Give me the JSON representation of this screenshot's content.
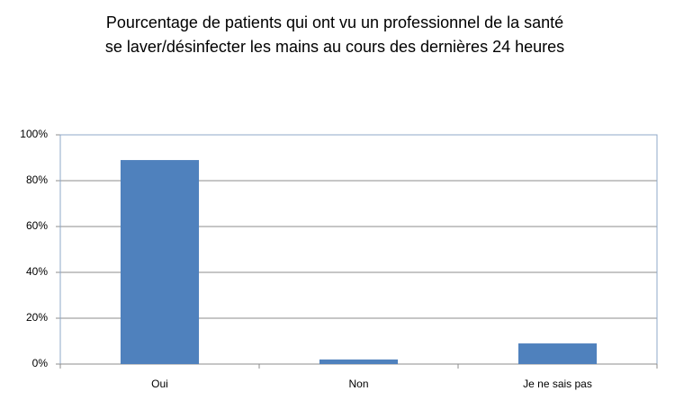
{
  "chart_data": {
    "type": "bar",
    "title": [
      "Pourcentage de patients qui ont vu un professionnel de la santé",
      "se laver/désinfecter les mains au cours des dernières 24 heures"
    ],
    "categories": [
      "Oui",
      "Non",
      "Je ne sais pas"
    ],
    "values": [
      89,
      2,
      9
    ],
    "color": "#4f81bd",
    "ylim": [
      0,
      100
    ],
    "yticks": [
      {
        "value": 0,
        "label": "0%"
      },
      {
        "value": 20,
        "label": "20%"
      },
      {
        "value": 40,
        "label": "40%"
      },
      {
        "value": 60,
        "label": "60%"
      },
      {
        "value": 80,
        "label": "80%"
      },
      {
        "value": 100,
        "label": "100%"
      }
    ],
    "grid": true
  }
}
